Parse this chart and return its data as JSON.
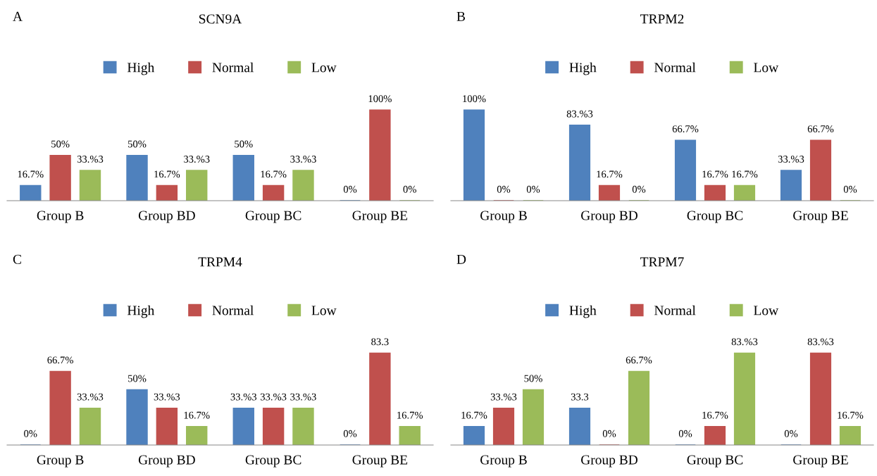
{
  "chart_data": [
    {
      "type": "bar",
      "title": "SCN9A",
      "annotations": [
        "A"
      ],
      "categories": [
        "Group B",
        "Group BD",
        "Group BC",
        "Group BE"
      ],
      "tick_labels": "x",
      "legend": "top",
      "grid": false,
      "series": [
        {
          "name": "High",
          "color": "#4f81bd",
          "values": [
            16.7,
            50,
            50,
            0
          ],
          "value_labels": [
            "16.7%",
            "50%",
            "50%",
            "0%"
          ]
        },
        {
          "name": "Normal",
          "color": "#c0504d",
          "values": [
            50,
            16.7,
            16.7,
            100
          ],
          "value_labels": [
            "50%",
            "16.7%",
            "16.7%",
            "100%"
          ]
        },
        {
          "name": "Low",
          "color": "#9bbb59",
          "values": [
            33.3,
            33.3,
            33.3,
            0
          ],
          "value_labels": [
            "33.%3",
            "33.%3",
            "33.%3",
            "0%"
          ]
        }
      ]
    },
    {
      "type": "bar",
      "title": "TRPM2",
      "annotations": [
        "B"
      ],
      "categories": [
        "Group B",
        "Group BD",
        "Group BC",
        "Group BE"
      ],
      "tick_labels": "x",
      "legend": "top",
      "grid": false,
      "series": [
        {
          "name": "High",
          "color": "#4f81bd",
          "values": [
            100,
            83.3,
            66.7,
            33.3
          ],
          "value_labels": [
            "100%",
            "83.%3",
            "66.7%",
            "33.%3"
          ]
        },
        {
          "name": "Normal",
          "color": "#c0504d",
          "values": [
            0,
            16.7,
            16.7,
            66.7
          ],
          "value_labels": [
            "0%",
            "16.7%",
            "16.7%",
            "66.7%"
          ]
        },
        {
          "name": "Low",
          "color": "#9bbb59",
          "values": [
            0,
            0,
            16.7,
            0
          ],
          "value_labels": [
            "0%",
            "0%",
            "16.7%",
            "0%"
          ]
        }
      ]
    },
    {
      "type": "bar",
      "title": "TRPM4",
      "annotations": [
        "C"
      ],
      "categories": [
        "Group B",
        "Group BD",
        "Group BC",
        "Group BE"
      ],
      "tick_labels": "x",
      "legend": "top",
      "grid": false,
      "series": [
        {
          "name": "High",
          "color": "#4f81bd",
          "values": [
            0,
            50,
            33.3,
            0
          ],
          "value_labels": [
            "0%",
            "50%",
            "33.%3",
            "0%"
          ]
        },
        {
          "name": "Normal",
          "color": "#c0504d",
          "values": [
            66.7,
            33.3,
            33.3,
            83.3
          ],
          "value_labels": [
            "66.7%",
            "33.%3",
            "33.%3",
            "83.3"
          ]
        },
        {
          "name": "Low",
          "color": "#9bbb59",
          "values": [
            33.3,
            16.7,
            33.3,
            16.7
          ],
          "value_labels": [
            "33.%3",
            "16.7%",
            "33.%3",
            "16.7%"
          ]
        }
      ]
    },
    {
      "type": "bar",
      "title": "TRPM7",
      "annotations": [
        "D"
      ],
      "categories": [
        "Group B",
        "Group BD",
        "Group BC",
        "Group BE"
      ],
      "tick_labels": "x",
      "legend": "top",
      "grid": false,
      "series": [
        {
          "name": "High",
          "color": "#4f81bd",
          "values": [
            16.7,
            33.3,
            0,
            0
          ],
          "value_labels": [
            "16.7%",
            "33.3",
            "0%",
            "0%"
          ]
        },
        {
          "name": "Normal",
          "color": "#c0504d",
          "values": [
            33.3,
            0,
            16.7,
            83.3
          ],
          "value_labels": [
            "33.%3",
            "0%",
            "16.7%",
            "83.%3"
          ]
        },
        {
          "name": "Low",
          "color": "#9bbb59",
          "values": [
            50,
            66.7,
            83.3,
            16.7
          ],
          "value_labels": [
            "50%",
            "66.7%",
            "83.%3",
            "16.7%"
          ]
        }
      ]
    }
  ]
}
